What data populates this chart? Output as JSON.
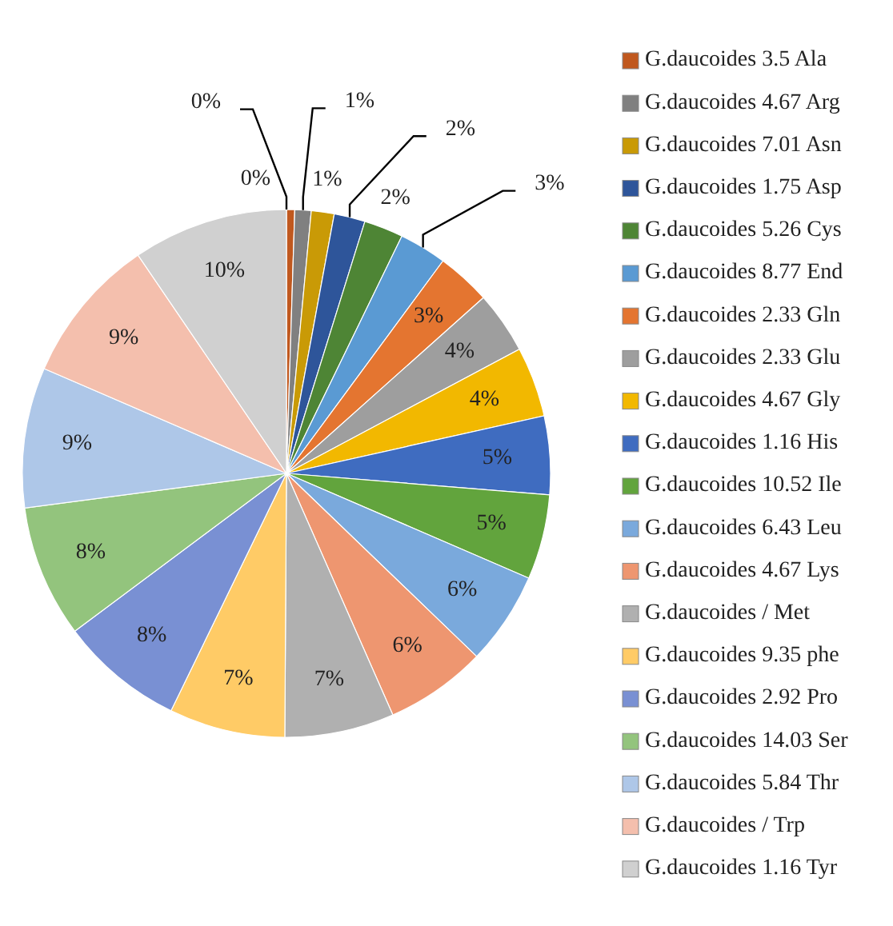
{
  "chart_data": {
    "type": "pie",
    "categories": [
      null,
      "G.daucoides 3.5 Ala",
      "G.daucoides 4.67 Arg",
      "G.daucoides 7.01 Asn",
      "G.daucoides 1.75 Asp",
      "G.daucoides 5.26 Cys",
      "G.daucoides 8.77 End",
      "G.daucoides 2.33 Gln",
      "G.daucoides 2.33 Glu",
      "G.daucoides 4.67 Gly",
      "G.daucoides 1.16 His",
      "G.daucoides 10.52 Ile",
      "G.daucoides 6.43 Leu",
      "G.daucoides 4.67 Lys",
      "G.daucoides / Met",
      "G.daucoides 9.35 phe",
      "G.daucoides 2.92 Pro",
      "G.daucoides 14.03 Ser",
      "G.daucoides 5.84 Thr",
      "G.daucoides / Trp",
      "G.daucoides 1.16 Tyr"
    ],
    "values": [
      0,
      0.5,
      1.0,
      1.4,
      1.9,
      2.4,
      2.9,
      3.3,
      3.8,
      4.3,
      4.8,
      5.2,
      5.7,
      6.2,
      6.7,
      7.1,
      7.6,
      8.1,
      8.6,
      9.0,
      9.5
    ],
    "value_labels": [
      "0%",
      "0%",
      "1%",
      "1%",
      "2%",
      "2%",
      "3%",
      "3%",
      "4%",
      "4%",
      "5%",
      "5%",
      "6%",
      "6%",
      "7%",
      "7%",
      "8%",
      "8%",
      "9%",
      "9%",
      "10%"
    ],
    "colors": [
      "#264478",
      "#c0581e",
      "#808080",
      "#c99a06",
      "#2e559a",
      "#4e8535",
      "#5a9ad3",
      "#e47530",
      "#9e9e9e",
      "#f2b800",
      "#3f6cc0",
      "#62a43d",
      "#7aa9dc",
      "#ee9670",
      "#b0b0b0",
      "#ffcb66",
      "#7990d3",
      "#93c47d",
      "#aec7e8",
      "#f4bfad",
      "#d0d0d0"
    ],
    "legend": "right"
  }
}
